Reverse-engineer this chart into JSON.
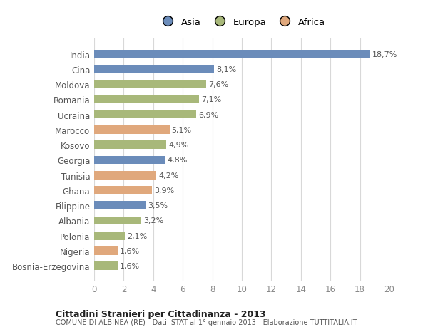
{
  "categories": [
    "India",
    "Cina",
    "Moldova",
    "Romania",
    "Ucraina",
    "Marocco",
    "Kosovo",
    "Georgia",
    "Tunisia",
    "Ghana",
    "Filippine",
    "Albania",
    "Polonia",
    "Nigeria",
    "Bosnia-Erzegovina"
  ],
  "values": [
    18.7,
    8.1,
    7.6,
    7.1,
    6.9,
    5.1,
    4.9,
    4.8,
    4.2,
    3.9,
    3.5,
    3.2,
    2.1,
    1.6,
    1.6
  ],
  "labels": [
    "18,7%",
    "8,1%",
    "7,6%",
    "7,1%",
    "6,9%",
    "5,1%",
    "4,9%",
    "4,8%",
    "4,2%",
    "3,9%",
    "3,5%",
    "3,2%",
    "2,1%",
    "1,6%",
    "1,6%"
  ],
  "continents": [
    "Asia",
    "Asia",
    "Europa",
    "Europa",
    "Europa",
    "Africa",
    "Europa",
    "Asia",
    "Africa",
    "Africa",
    "Asia",
    "Europa",
    "Europa",
    "Africa",
    "Europa"
  ],
  "colors": {
    "Asia": "#6b8cba",
    "Europa": "#a8b87a",
    "Africa": "#e0a87c"
  },
  "legend": [
    "Asia",
    "Europa",
    "Africa"
  ],
  "legend_colors": [
    "#6b8cba",
    "#a8b87a",
    "#e0a87c"
  ],
  "xlim": [
    0,
    20
  ],
  "xticks": [
    0,
    2,
    4,
    6,
    8,
    10,
    12,
    14,
    16,
    18,
    20
  ],
  "title": "Cittadini Stranieri per Cittadinanza - 2013",
  "subtitle": "COMUNE DI ALBINEA (RE) - Dati ISTAT al 1° gennaio 2013 - Elaborazione TUTTITALIA.IT",
  "bg_color": "#ffffff",
  "grid_color": "#d8d8d8",
  "bar_height": 0.55
}
